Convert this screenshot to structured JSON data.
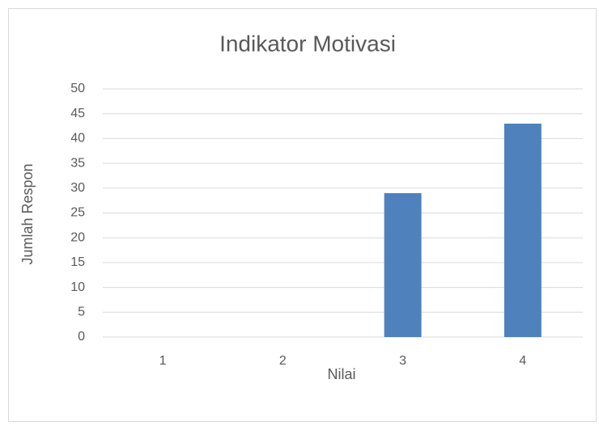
{
  "chart_data": {
    "type": "bar",
    "title": "Indikator Motivasi",
    "x_label": "Nilai",
    "y_label": "Jumlah Respon",
    "categories": [
      "1",
      "2",
      "3",
      "4"
    ],
    "values": [
      0,
      0,
      29,
      43
    ],
    "color": "#4f81bd",
    "ylim": [
      0,
      50
    ],
    "yticks": [
      0,
      5,
      10,
      15,
      20,
      25,
      30,
      35,
      40,
      45,
      50
    ],
    "grid": true
  }
}
